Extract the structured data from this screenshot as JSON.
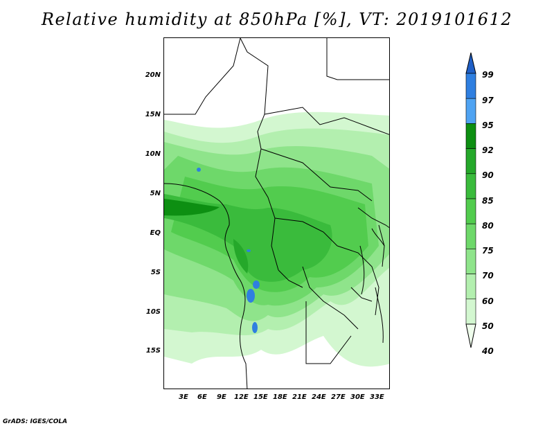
{
  "title": "Relative humidity at 850hPa [%], VT: 2019101612",
  "credit": "GrADS: IGES/COLA",
  "map": {
    "lat_ticks": [
      "20N",
      "15N",
      "10N",
      "5N",
      "EQ",
      "5S",
      "10S",
      "15S"
    ],
    "lon_ticks": [
      "3E",
      "6E",
      "9E",
      "12E",
      "15E",
      "18E",
      "21E",
      "24E",
      "27E",
      "30E",
      "33E"
    ]
  },
  "colorbar": {
    "labels": [
      "99",
      "97",
      "95",
      "92",
      "90",
      "85",
      "80",
      "75",
      "70",
      "60",
      "50",
      "40"
    ],
    "colors": [
      "#1f5fc6",
      "#2f7fe0",
      "#4fa3f2",
      "#0d8f12",
      "#25a82a",
      "#3abb3c",
      "#52cc4e",
      "#6ed86a",
      "#8fe48b",
      "#b3efaf",
      "#d3f7d0",
      "#effdec"
    ]
  }
}
